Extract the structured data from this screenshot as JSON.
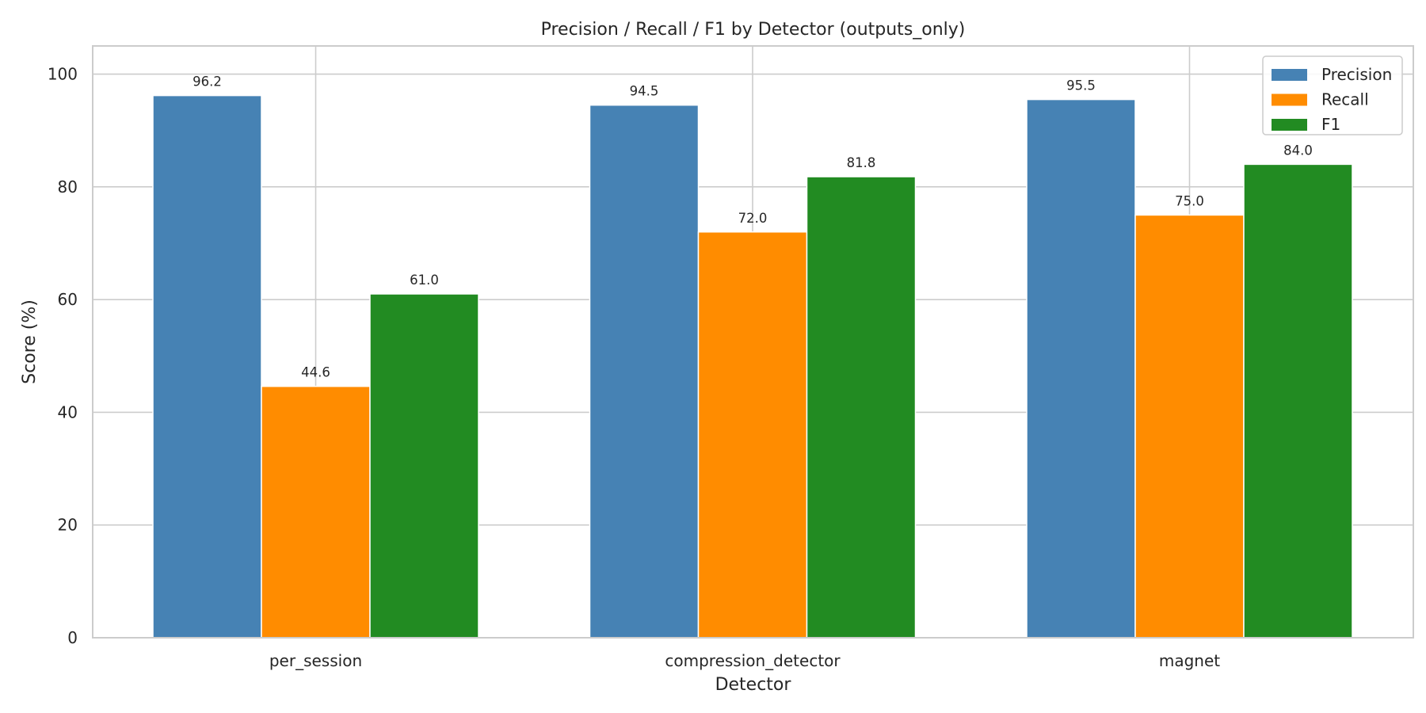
{
  "chart_data": {
    "type": "bar",
    "title": "Precision / Recall / F1 by Detector (outputs_only)",
    "xlabel": "Detector",
    "ylabel": "Score (%)",
    "ylim": [
      0,
      105
    ],
    "yticks": [
      0,
      20,
      40,
      60,
      80,
      100
    ],
    "categories": [
      "per_session",
      "compression_detector",
      "magnet"
    ],
    "series": [
      {
        "name": "Precision",
        "color": "#4682b4",
        "values": [
          96.2,
          94.5,
          95.5
        ],
        "labels": [
          "96.2",
          "94.5",
          "95.5"
        ]
      },
      {
        "name": "Recall",
        "color": "#ff8c00",
        "values": [
          44.6,
          72.0,
          75.0
        ],
        "labels": [
          "44.6",
          "72.0",
          "75.0"
        ]
      },
      {
        "name": "F1",
        "color": "#228b22",
        "values": [
          61.0,
          81.8,
          84.0
        ],
        "labels": [
          "61.0",
          "81.8",
          "84.0"
        ]
      }
    ],
    "grid": true,
    "legend_position": "top-right"
  }
}
